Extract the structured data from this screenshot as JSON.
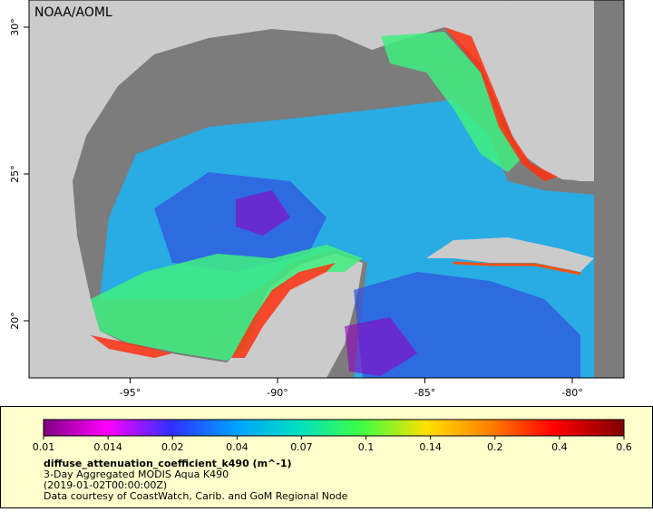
{
  "watermark": "NOAA/AOML",
  "map": {
    "lat_ticks": [
      {
        "value": 30,
        "label": "30°"
      },
      {
        "value": 25,
        "label": "25°"
      },
      {
        "value": 20,
        "label": "20°"
      }
    ],
    "lon_ticks": [
      {
        "value": -95,
        "label": "-95°"
      },
      {
        "value": -90,
        "label": "-90°"
      },
      {
        "value": -85,
        "label": "-85°"
      },
      {
        "value": -80,
        "label": "-80°"
      }
    ]
  },
  "legend": {
    "colorbar_ticks": [
      0.01,
      0.014,
      0.02,
      0.04,
      0.07,
      0.1,
      0.14,
      0.2,
      0.4,
      0.6
    ],
    "variable": "diffuse_attenuation_coefficient_k490 (m^-1)",
    "lines": [
      "3-Day Aggregated MODIS Aqua K490",
      "(2019-01-02T00:00:00Z)",
      "Data courtesy of CoastWatch, Carib. and GoM Regional Node"
    ]
  }
}
